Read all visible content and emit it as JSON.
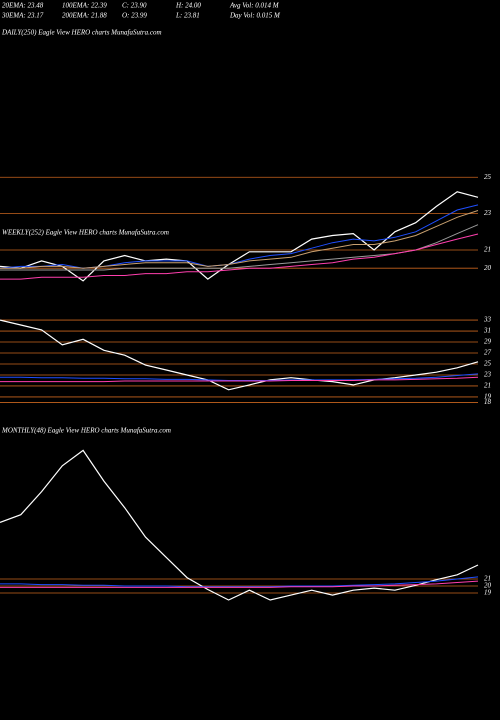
{
  "header": {
    "rows": [
      [
        "20EMA: 23.48",
        "100EMA: 22.39",
        "C: 23.90",
        "H: 24.00",
        "Avg Vol: 0.014  M"
      ],
      [
        "30EMA: 23.17",
        "200EMA: 21.88",
        "O: 23.99",
        "L: 23.81",
        "Day Vol: 0.015  M"
      ]
    ]
  },
  "chart_data": [
    {
      "type": "line",
      "title": "DAILY(250) Eagle   View  HERO charts MunafaSutra.com",
      "categories": [
        null,
        null,
        null,
        null,
        null,
        null,
        null,
        null,
        null,
        null,
        null,
        null,
        null,
        null,
        null,
        null,
        null,
        null,
        null,
        null,
        null,
        null,
        null,
        null
      ],
      "ylim": [
        18.8,
        33.1
      ],
      "yticks": [
        20,
        21,
        23,
        25
      ],
      "grid": true,
      "grid_color": "#c8641e",
      "series": [
        {
          "color": "#ffffff",
          "values": [
            20.1,
            20.0,
            20.4,
            20.1,
            19.3,
            20.4,
            20.7,
            20.4,
            20.5,
            20.4,
            19.4,
            20.2,
            20.9,
            20.9,
            20.9,
            21.6,
            21.8,
            21.9,
            21.0,
            22.0,
            22.5,
            23.4,
            24.2,
            23.9
          ]
        },
        {
          "color": "#1f4fff",
          "values": [
            20.0,
            20.1,
            20.1,
            20.2,
            20.0,
            20.1,
            20.3,
            20.4,
            20.4,
            20.4,
            20.1,
            20.2,
            20.5,
            20.7,
            20.8,
            21.1,
            21.4,
            21.6,
            21.5,
            21.7,
            22.0,
            22.6,
            23.2,
            23.48
          ]
        },
        {
          "color": "#c8a070",
          "values": [
            20.0,
            20.0,
            20.1,
            20.1,
            20.0,
            20.1,
            20.2,
            20.3,
            20.3,
            20.3,
            20.1,
            20.2,
            20.4,
            20.5,
            20.6,
            20.9,
            21.1,
            21.3,
            21.3,
            21.5,
            21.8,
            22.3,
            22.8,
            23.17
          ]
        },
        {
          "color": "#9a9a9a",
          "values": [
            19.9,
            19.9,
            19.9,
            19.9,
            19.9,
            19.9,
            20.0,
            20.0,
            20.0,
            20.0,
            20.0,
            20.0,
            20.1,
            20.2,
            20.3,
            20.4,
            20.5,
            20.6,
            20.7,
            20.8,
            21.0,
            21.4,
            21.9,
            22.39
          ]
        },
        {
          "color": "#ff3fae",
          "values": [
            19.4,
            19.4,
            19.5,
            19.5,
            19.5,
            19.6,
            19.6,
            19.7,
            19.7,
            19.8,
            19.8,
            19.9,
            20.0,
            20.0,
            20.1,
            20.2,
            20.3,
            20.5,
            20.6,
            20.8,
            21.0,
            21.3,
            21.6,
            21.88
          ]
        }
      ]
    },
    {
      "type": "line",
      "title": "WEEKLY(252) Eagle   View  HERO charts MunafaSutra.com",
      "categories": [
        null,
        null,
        null,
        null,
        null,
        null,
        null,
        null,
        null,
        null,
        null,
        null,
        null,
        null,
        null,
        null,
        null,
        null,
        null,
        null,
        null,
        null,
        null,
        null
      ],
      "ylim": [
        14.8,
        49.4
      ],
      "yticks": [
        18,
        19,
        21,
        23,
        25,
        27,
        29,
        31,
        33
      ],
      "grid": true,
      "grid_color": "#c8641e",
      "series": [
        {
          "color": "#ffffff",
          "values": [
            33,
            32.1,
            31.2,
            28.5,
            29.5,
            27.5,
            26.6,
            24.8,
            23.9,
            23.0,
            22.1,
            20.3,
            21.2,
            22.1,
            22.5,
            22.1,
            21.8,
            21.2,
            22.1,
            22.5,
            23.0,
            23.5,
            24.3,
            25.4
          ]
        },
        {
          "color": "#1f4fff",
          "values": [
            22.6,
            22.6,
            22.5,
            22.5,
            22.4,
            22.4,
            22.3,
            22.3,
            22.2,
            22.2,
            22.1,
            22.0,
            22.0,
            22.0,
            22.1,
            22.1,
            22.1,
            22.1,
            22.2,
            22.3,
            22.4,
            22.6,
            22.9,
            23.2
          ]
        },
        {
          "color": "#ff3fae",
          "values": [
            21.8,
            21.8,
            21.8,
            21.8,
            21.8,
            21.8,
            21.9,
            21.9,
            21.9,
            21.9,
            21.9,
            21.9,
            21.9,
            21.9,
            22.0,
            22.0,
            22.0,
            22.0,
            22.1,
            22.1,
            22.2,
            22.3,
            22.4,
            22.6
          ]
        }
      ]
    },
    {
      "type": "line",
      "title": "MONTHLY(48) Eagle   View  HERO charts MunafaSutra.com",
      "categories": [
        null,
        null,
        null,
        null,
        null,
        null,
        null,
        null,
        null,
        null,
        null,
        null,
        null,
        null,
        null,
        null,
        null,
        null,
        null,
        null,
        null,
        null,
        null,
        null
      ],
      "ylim": [
        3.7,
        42.6
      ],
      "yticks": [
        19,
        20,
        21
      ],
      "grid": true,
      "grid_color": "#c8641e",
      "series": [
        {
          "color": "#ffffff",
          "values": [
            29.1,
            30.2,
            33.5,
            37.2,
            39.4,
            35.0,
            31.2,
            27.0,
            24.1,
            21.2,
            19.5,
            18.0,
            19.4,
            18.0,
            18.7,
            19.4,
            18.7,
            19.4,
            19.7,
            19.4,
            20.1,
            20.9,
            21.6,
            23.0
          ]
        },
        {
          "color": "#1f4fff",
          "values": [
            20.3,
            20.3,
            20.2,
            20.2,
            20.1,
            20.1,
            20.0,
            20.0,
            20.0,
            19.9,
            19.9,
            19.9,
            19.9,
            19.9,
            20.0,
            20.0,
            20.0,
            20.1,
            20.2,
            20.3,
            20.5,
            20.7,
            21.0,
            21.3
          ]
        },
        {
          "color": "#ff3fae",
          "values": [
            19.8,
            19.8,
            19.8,
            19.8,
            19.8,
            19.8,
            19.8,
            19.8,
            19.8,
            19.8,
            19.8,
            19.8,
            19.8,
            19.8,
            19.9,
            19.9,
            19.9,
            20.0,
            20.0,
            20.1,
            20.2,
            20.3,
            20.5,
            20.7
          ]
        }
      ]
    }
  ]
}
